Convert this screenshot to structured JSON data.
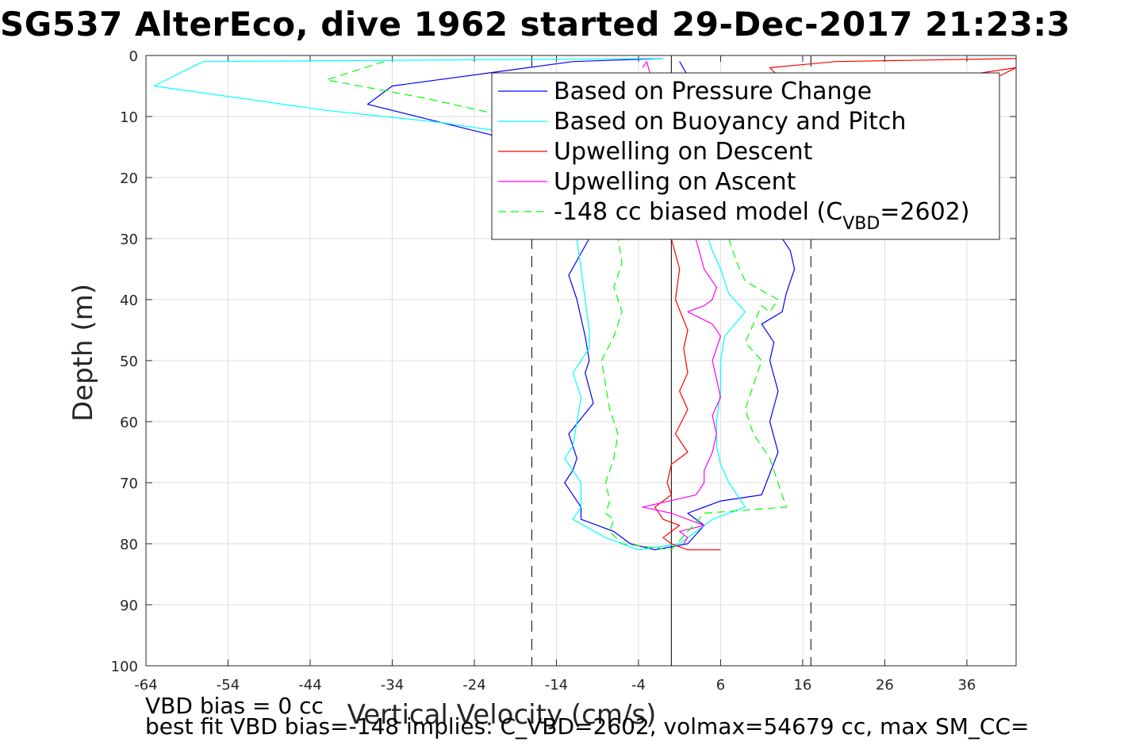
{
  "title": "SG537 AlterEco, dive 1962 started 29-Dec-2017 21:23:3",
  "footer": {
    "line1": "VBD bias = 0 cc",
    "line2": "best fit VBD bias=-148 implies: C_VBD=2602, volmax=54679 cc, max SM_CC="
  },
  "chart_data": {
    "type": "line",
    "title": "SG537 AlterEco, dive 1962 started 29-Dec-2017 21:23:3",
    "xlabel": "Vertical Velocity (cm/s)",
    "ylabel": "Depth (m)",
    "xlim": [
      -64,
      42
    ],
    "ylim": [
      0,
      100
    ],
    "y_reversed": true,
    "grid": true,
    "x_ticks": [
      "-64",
      "-54",
      "-44",
      "-34",
      "-24",
      "-14",
      "-4",
      "6",
      "16",
      "26",
      "36"
    ],
    "x_tick_values": [
      -64,
      -54,
      -44,
      -34,
      -24,
      -14,
      -4,
      6,
      16,
      26,
      36
    ],
    "y_ticks": [
      "0",
      "10",
      "20",
      "30",
      "40",
      "50",
      "60",
      "70",
      "80",
      "90",
      "100"
    ],
    "y_tick_values": [
      0,
      10,
      20,
      30,
      40,
      50,
      60,
      70,
      80,
      90,
      100
    ],
    "legend_position": "top-right",
    "legend": [
      {
        "label": "Based on Pressure Change",
        "color": "#0000ff",
        "dash": "solid"
      },
      {
        "label": "Based on Buoyancy and Pitch",
        "color": "#00ffff",
        "dash": "solid"
      },
      {
        "label": "Upwelling on Descent",
        "color": "#ff0000",
        "dash": "solid"
      },
      {
        "label": "Upwelling on Ascent",
        "color": "#ff00ff",
        "dash": "solid"
      },
      {
        "label": "-148 cc biased model (C",
        "sub": "VBD",
        "suffix": "=2602)",
        "color": "#00ff00",
        "dash": "dashed"
      }
    ],
    "reference_lines": [
      {
        "x": 0,
        "style": "solid",
        "color": "#000000"
      },
      {
        "x": -17,
        "style": "dashed",
        "color": "#000000"
      },
      {
        "x": 17,
        "style": "dashed",
        "color": "#000000"
      }
    ],
    "series": [
      {
        "name": "Based on Pressure Change",
        "color": "#0000ff",
        "dash": "solid",
        "x": [
          -1,
          -12,
          -34,
          -37,
          -22,
          -10,
          -12.5,
          -11.5,
          -11,
          -10.5,
          -10,
          -10.5,
          -9.5,
          -12.5,
          -11.5,
          -12,
          -13,
          -12,
          -11,
          -11,
          -7,
          -5,
          -2,
          2,
          4,
          2,
          6,
          11,
          13,
          12,
          13,
          12,
          12.5,
          11,
          13.5,
          14,
          15,
          14.5,
          13.5,
          1
        ],
        "y": [
          0.5,
          1,
          5,
          8,
          13,
          30,
          36,
          40,
          43,
          46,
          50,
          52,
          57,
          62,
          66,
          68,
          70,
          72,
          74,
          76,
          78,
          80,
          81,
          80,
          77,
          75,
          73,
          72,
          65,
          60,
          55,
          50,
          47,
          44,
          42,
          39,
          35,
          32,
          30,
          1
        ]
      },
      {
        "name": "Based on Buoyancy and Pitch",
        "color": "#00ffff",
        "dash": "solid",
        "x": [
          -1,
          -57,
          -63,
          -42,
          -28,
          -18,
          -11.5,
          -11,
          -10.5,
          -10,
          -10,
          -12,
          -11,
          -11.5,
          -12,
          -13,
          -11,
          -11,
          -12,
          -8,
          -4,
          1,
          3,
          5,
          9,
          7,
          6,
          5.5,
          5.5,
          6,
          6,
          6.5,
          9,
          7,
          6,
          5,
          4.5
        ],
        "y": [
          0.5,
          1,
          5,
          9,
          11,
          13,
          30,
          35,
          40,
          45,
          48,
          52,
          56,
          60,
          64,
          66,
          70,
          74,
          76,
          79,
          81,
          80,
          78,
          76,
          74,
          70,
          67,
          64,
          60,
          55,
          50,
          46,
          42,
          39,
          35,
          32,
          30
        ]
      },
      {
        "name": "Upwelling on Descent",
        "color": "#ff0000",
        "dash": "solid",
        "x": [
          42,
          20,
          12,
          15,
          32,
          42,
          0,
          1,
          0.5,
          2,
          1.5,
          2,
          1,
          2,
          0.5,
          2,
          0,
          -0.5,
          0,
          -2,
          -1,
          1,
          -1,
          0,
          2,
          6
        ],
        "y": [
          0.5,
          1,
          2,
          6,
          4,
          2,
          30,
          35,
          40,
          45,
          48,
          52,
          55,
          58,
          62,
          65,
          67,
          70,
          72,
          74,
          76,
          77,
          79,
          80,
          81,
          81
        ]
      },
      {
        "name": "Upwelling on Ascent",
        "color": "#ff00ff",
        "dash": "solid",
        "x": [
          -3.5,
          -3,
          4,
          5.5,
          5,
          4,
          2,
          5,
          6,
          5,
          5.5,
          6,
          5,
          5.5,
          5,
          4,
          4,
          3,
          -3.5,
          0,
          4,
          1,
          2,
          1.5
        ],
        "y": [
          2,
          1,
          35,
          38,
          40,
          41,
          42,
          44,
          46,
          50,
          53,
          56,
          59,
          62,
          65,
          68,
          70,
          72,
          74,
          75,
          77,
          78,
          79,
          80
        ]
      },
      {
        "name": "-148 cc biased model",
        "color": "#00ff00",
        "dash": "dashed",
        "x": [
          -35,
          -42,
          -30,
          -20,
          -8,
          -6.5,
          -6,
          -7,
          -6,
          -7,
          -8.5,
          -8,
          -7.5,
          -6.5,
          -7,
          -8,
          -7.5,
          -8,
          -7,
          -7.5,
          -6,
          -3,
          0,
          4,
          14,
          13,
          12,
          10,
          9,
          10,
          11,
          9,
          10,
          11,
          12,
          13,
          9,
          8,
          7
        ],
        "y": [
          1,
          4,
          7,
          10,
          13,
          30,
          34,
          38,
          42,
          46,
          50,
          54,
          58,
          62,
          66,
          70,
          73,
          75,
          76,
          78,
          80,
          80.5,
          81,
          75,
          74,
          70,
          66,
          62,
          58,
          54,
          50,
          47,
          44,
          41,
          42,
          40,
          37,
          34,
          30
        ]
      }
    ]
  }
}
